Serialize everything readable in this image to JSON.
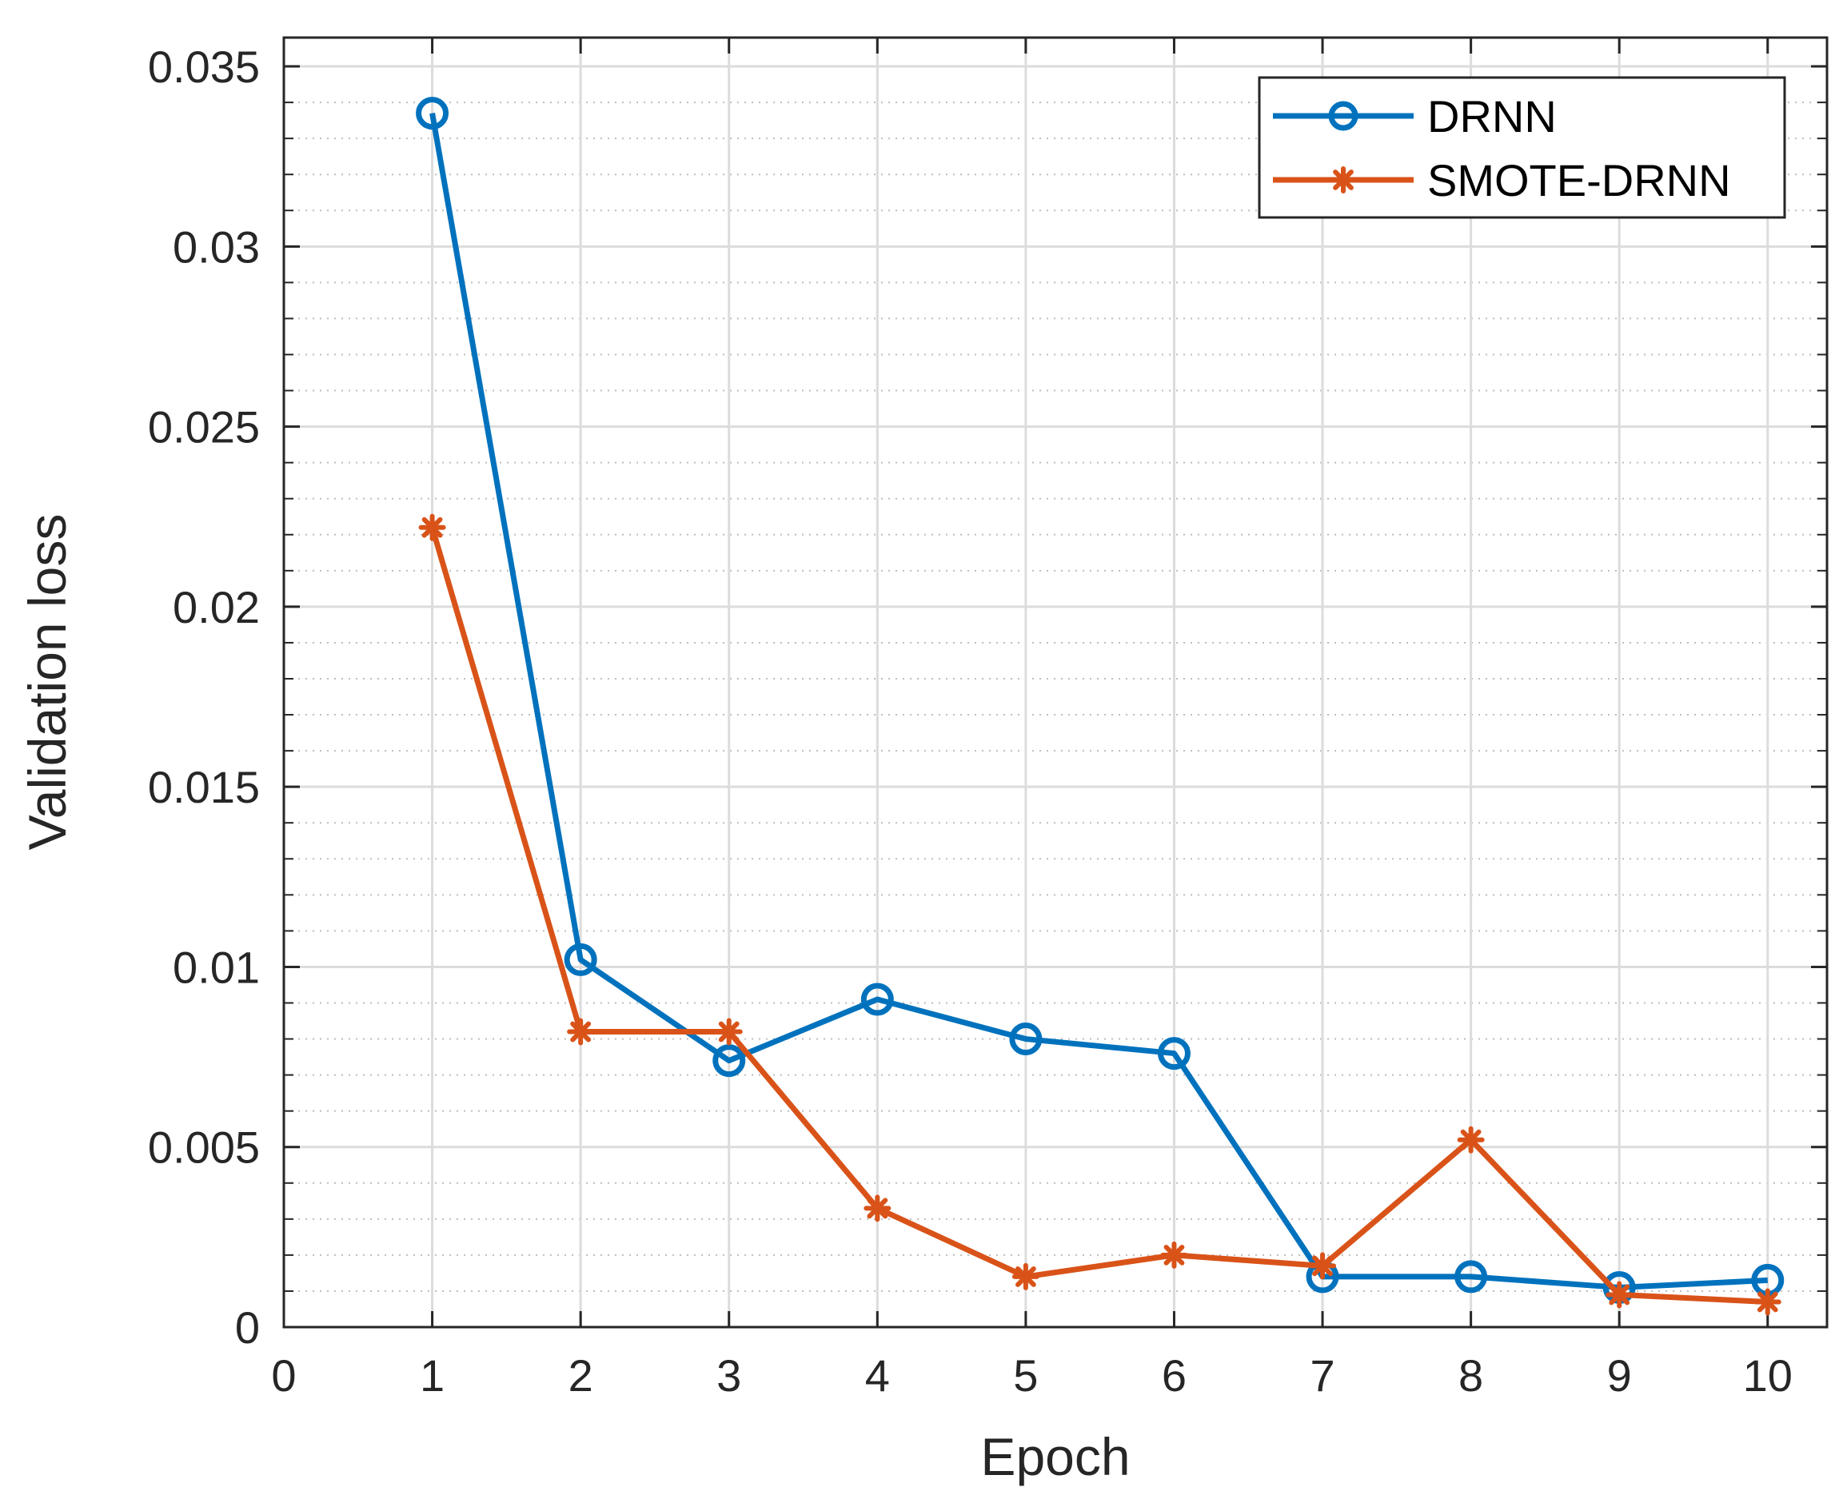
{
  "chart_data": {
    "type": "line",
    "xlabel": "Epoch",
    "ylabel": "Validation loss",
    "xlim": [
      0,
      10.4
    ],
    "ylim": [
      0,
      0.0358
    ],
    "xticks": [
      0,
      1,
      2,
      3,
      4,
      5,
      6,
      7,
      8,
      9,
      10
    ],
    "xtick_labels": [
      "0",
      "1",
      "2",
      "3",
      "4",
      "5",
      "6",
      "7",
      "8",
      "9",
      "10"
    ],
    "yticks": [
      0,
      0.005,
      0.01,
      0.015,
      0.02,
      0.025,
      0.03,
      0.035
    ],
    "ytick_labels": [
      "0",
      "0.005",
      "0.01",
      "0.015",
      "0.02",
      "0.025",
      "0.03",
      "0.035"
    ],
    "grid": true,
    "minor_grid_y": true,
    "legend_position": "top-right",
    "x": [
      1,
      2,
      3,
      4,
      5,
      6,
      7,
      8,
      9,
      10
    ],
    "series": [
      {
        "name": "DRNN",
        "color": "#0072BD",
        "marker": "circle",
        "values": [
          0.0337,
          0.0102,
          0.0074,
          0.0091,
          0.008,
          0.0076,
          0.0014,
          0.0014,
          0.0011,
          0.0013
        ]
      },
      {
        "name": "SMOTE-DRNN",
        "color": "#D95319",
        "marker": "asterisk",
        "values": [
          0.0222,
          0.0082,
          0.0082,
          0.0033,
          0.0014,
          0.002,
          0.0017,
          0.0052,
          0.0009,
          0.0007
        ]
      }
    ]
  }
}
